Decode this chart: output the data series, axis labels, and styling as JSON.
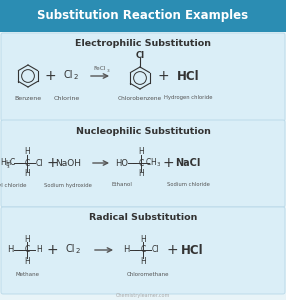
{
  "title": "Substitution Reaction Examples",
  "title_bg": "#2b8db3",
  "title_color": "white",
  "bg_color": "#e8f4f8",
  "box_bg": "#daeef7",
  "box_edge": "#b8d8e8",
  "text_dark": "#333333",
  "text_mid": "#555555",
  "arrow_color": "#555555",
  "section1_title": "Electrophilic Substitution",
  "section2_title": "Nucleophilic Substitution",
  "section3_title": "Radical Substitution",
  "watermark": "Chemistrylearner.com"
}
